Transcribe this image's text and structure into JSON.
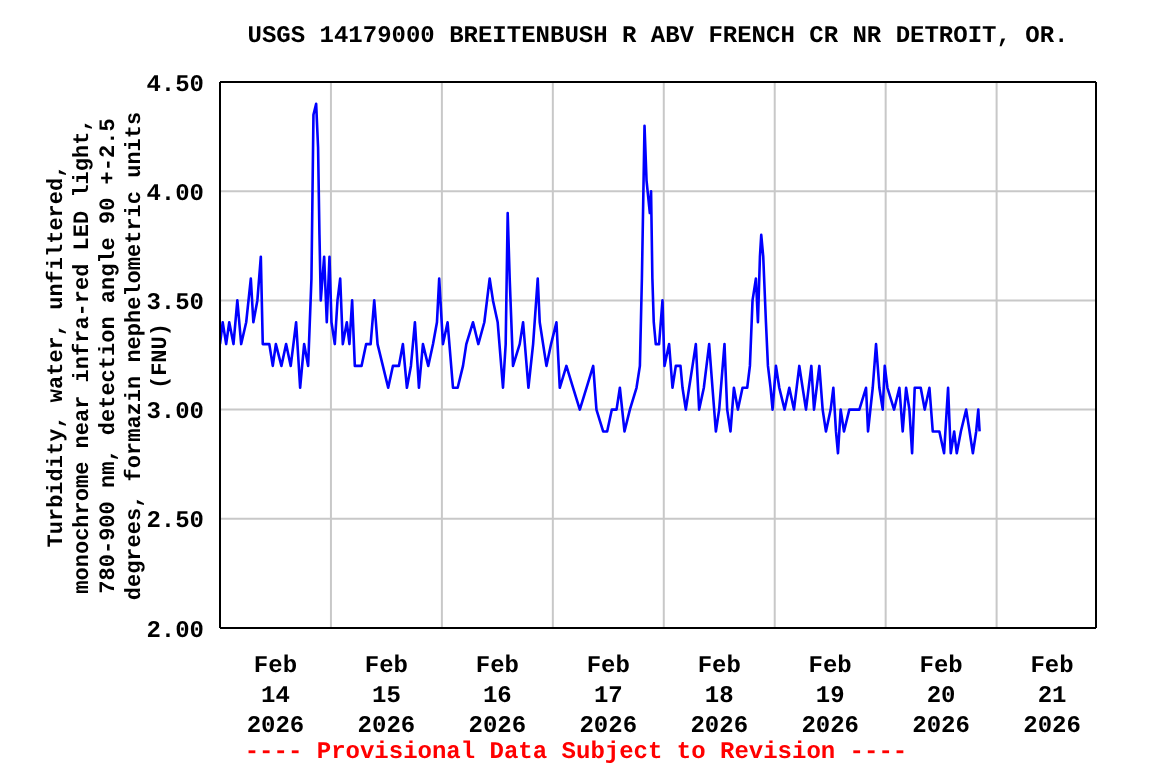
{
  "chart_data": {
    "type": "line",
    "title": "USGS 14179000 BREITENBUSH R ABV FRENCH CR NR DETROIT, OR.",
    "ylabel": "Turbidity, water, unfiltered,\nmonochrome near infra-red LED light,\n780-900 nm, detection angle 90 +-2.5\ndegrees, formazin nephelometric units\n(FNU)",
    "annotations": [
      "---- Provisional Data Subject to Revision ----"
    ],
    "x": [
      "2026-02-14T00:00",
      "2026-02-14T00:35",
      "2026-02-14T01:20",
      "2026-02-14T02:00",
      "2026-02-14T02:55",
      "2026-02-14T03:45",
      "2026-02-14T04:35",
      "2026-02-14T05:40",
      "2026-02-14T06:40",
      "2026-02-14T07:13",
      "2026-02-14T08:05",
      "2026-02-14T08:50",
      "2026-02-14T09:15",
      "2026-02-14T10:40",
      "2026-02-14T11:25",
      "2026-02-14T12:05",
      "2026-02-14T13:17",
      "2026-02-14T14:18",
      "2026-02-14T15:18",
      "2026-02-14T16:28",
      "2026-02-14T17:20",
      "2026-02-14T18:12",
      "2026-02-14T19:04",
      "2026-02-14T19:47",
      "2026-02-14T20:13",
      "2026-02-14T20:48",
      "2026-02-14T21:13",
      "2026-02-14T21:31",
      "2026-02-14T21:48",
      "2026-02-14T22:32",
      "2026-02-14T23:06",
      "2026-02-14T23:41",
      "2026-02-15T00:07",
      "2026-02-15T00:50",
      "2026-02-15T01:25",
      "2026-02-15T02:00",
      "2026-02-15T02:34",
      "2026-02-15T03:26",
      "2026-02-15T04:00",
      "2026-02-15T04:35",
      "2026-02-15T05:10",
      "2026-02-15T06:37",
      "2026-02-15T07:37",
      "2026-02-15T08:35",
      "2026-02-15T09:22",
      "2026-02-15T10:05",
      "2026-02-15T11:14",
      "2026-02-15T12:23",
      "2026-02-15T13:24",
      "2026-02-15T14:42",
      "2026-02-15T15:34",
      "2026-02-15T16:26",
      "2026-02-15T17:18",
      "2026-02-15T18:10",
      "2026-02-15T19:02",
      "2026-02-15T19:54",
      "2026-02-15T21:03",
      "2026-02-15T22:05",
      "2026-02-15T22:56",
      "2026-02-15T23:25",
      "2026-02-16T00:14",
      "2026-02-16T01:14",
      "2026-02-16T02:24",
      "2026-02-16T03:25",
      "2026-02-16T04:34",
      "2026-02-16T05:17",
      "2026-02-16T06:44",
      "2026-02-16T07:53",
      "2026-02-16T09:11",
      "2026-02-16T10:20",
      "2026-02-16T11:03",
      "2026-02-16T12:04",
      "2026-02-16T13:13",
      "2026-02-16T13:48",
      "2026-02-16T14:14",
      "2026-02-16T14:40",
      "2026-02-16T15:23",
      "2026-02-16T16:50",
      "2026-02-16T17:34",
      "2026-02-16T18:43",
      "2026-02-16T19:44",
      "2026-02-16T20:44",
      "2026-02-16T21:10",
      "2026-02-16T22:37",
      "2026-02-16T23:37",
      "2026-02-17T00:47",
      "2026-02-17T01:30",
      "2026-02-17T02:56",
      "2026-02-17T04:23",
      "2026-02-17T05:50",
      "2026-02-17T07:17",
      "2026-02-17T08:44",
      "2026-02-17T09:26",
      "2026-02-17T10:53",
      "2026-02-17T11:45",
      "2026-02-17T12:46",
      "2026-02-17T13:47",
      "2026-02-17T14:30",
      "2026-02-17T15:30",
      "2026-02-17T16:40",
      "2026-02-17T18:06",
      "2026-02-17T18:50",
      "2026-02-17T19:16",
      "2026-02-17T19:50",
      "2026-02-17T20:16",
      "2026-02-17T20:59",
      "2026-02-17T21:15",
      "2026-02-17T21:32",
      "2026-02-17T21:50",
      "2026-02-17T22:16",
      "2026-02-17T22:59",
      "2026-02-17T23:43",
      "2026-02-18T00:09",
      "2026-02-18T01:09",
      "2026-02-18T01:53",
      "2026-02-18T02:36",
      "2026-02-18T03:37",
      "2026-02-18T04:03",
      "2026-02-18T04:46",
      "2026-02-18T05:29",
      "2026-02-18T06:13",
      "2026-02-18T06:56",
      "2026-02-18T07:39",
      "2026-02-18T08:40",
      "2026-02-18T09:49",
      "2026-02-18T10:32",
      "2026-02-18T11:16",
      "2026-02-18T11:59",
      "2026-02-18T13:08",
      "2026-02-18T13:43",
      "2026-02-18T14:26",
      "2026-02-18T15:10",
      "2026-02-18T16:02",
      "2026-02-18T17:02",
      "2026-02-18T18:03",
      "2026-02-18T18:38",
      "2026-02-18T19:12",
      "2026-02-18T19:56",
      "2026-02-18T20:22",
      "2026-02-18T20:48",
      "2026-02-18T21:05",
      "2026-02-18T21:31",
      "2026-02-18T22:06",
      "2026-02-18T22:32",
      "2026-02-18T23:06",
      "2026-02-18T23:32",
      "2026-02-19T00:16",
      "2026-02-19T00:59",
      "2026-02-19T02:08",
      "2026-02-19T03:09",
      "2026-02-19T04:10",
      "2026-02-19T05:19",
      "2026-02-19T06:02",
      "2026-02-19T06:46",
      "2026-02-19T07:55",
      "2026-02-19T08:30",
      "2026-02-19T09:39",
      "2026-02-19T10:22",
      "2026-02-19T11:05",
      "2026-02-19T12:06",
      "2026-02-19T12:41",
      "2026-02-19T13:15",
      "2026-02-19T13:41",
      "2026-02-19T14:16",
      "2026-02-19T14:59",
      "2026-02-19T16:08",
      "2026-02-19T18:18",
      "2026-02-19T19:45",
      "2026-02-19T20:11",
      "2026-02-19T21:12",
      "2026-02-19T21:55",
      "2026-02-19T22:38",
      "2026-02-19T23:22",
      "2026-02-19T23:48",
      "2026-02-20T00:23",
      "2026-02-20T01:49",
      "2026-02-20T02:58",
      "2026-02-20T03:41",
      "2026-02-20T04:25",
      "2026-02-20T05:08",
      "2026-02-20T05:43",
      "2026-02-20T06:17",
      "2026-02-20T07:35",
      "2026-02-20T08:27",
      "2026-02-20T09:28",
      "2026-02-20T10:11",
      "2026-02-20T11:37",
      "2026-02-20T12:38",
      "2026-02-20T13:30",
      "2026-02-20T14:05",
      "2026-02-20T14:49",
      "2026-02-20T15:23",
      "2026-02-20T16:16",
      "2026-02-20T17:25",
      "2026-02-20T18:09",
      "2026-02-20T18:52",
      "2026-02-20T19:35",
      "2026-02-20T20:02",
      "2026-02-20T20:19"
    ],
    "series": [
      {
        "color": "#0000ff",
        "values": [
          3.3,
          3.4,
          3.3,
          3.4,
          3.3,
          3.5,
          3.3,
          3.4,
          3.6,
          3.4,
          3.5,
          3.7,
          3.3,
          3.3,
          3.2,
          3.3,
          3.2,
          3.3,
          3.2,
          3.4,
          3.1,
          3.3,
          3.2,
          3.6,
          4.35,
          4.4,
          4.2,
          3.8,
          3.5,
          3.7,
          3.4,
          3.7,
          3.4,
          3.3,
          3.5,
          3.6,
          3.3,
          3.4,
          3.3,
          3.5,
          3.2,
          3.2,
          3.3,
          3.3,
          3.5,
          3.3,
          3.2,
          3.1,
          3.2,
          3.2,
          3.3,
          3.1,
          3.2,
          3.4,
          3.1,
          3.3,
          3.2,
          3.3,
          3.4,
          3.6,
          3.3,
          3.4,
          3.1,
          3.1,
          3.2,
          3.3,
          3.4,
          3.3,
          3.4,
          3.6,
          3.5,
          3.4,
          3.1,
          3.3,
          3.9,
          3.6,
          3.2,
          3.3,
          3.4,
          3.1,
          3.3,
          3.6,
          3.4,
          3.2,
          3.3,
          3.4,
          3.1,
          3.2,
          3.1,
          3.0,
          3.1,
          3.2,
          3.0,
          2.9,
          2.9,
          3.0,
          3.0,
          3.1,
          2.9,
          3.0,
          3.1,
          3.2,
          3.6,
          4.3,
          4.05,
          3.9,
          4.0,
          3.6,
          3.4,
          3.3,
          3.3,
          3.5,
          3.2,
          3.3,
          3.1,
          3.2,
          3.2,
          3.1,
          3.0,
          3.1,
          3.2,
          3.3,
          3.0,
          3.1,
          3.3,
          3.1,
          2.9,
          3.0,
          3.3,
          3.0,
          2.9,
          3.1,
          3.0,
          3.1,
          3.1,
          3.2,
          3.5,
          3.6,
          3.4,
          3.7,
          3.8,
          3.7,
          3.4,
          3.2,
          3.1,
          3.0,
          3.2,
          3.1,
          3.0,
          3.1,
          3.0,
          3.2,
          3.1,
          3.0,
          3.2,
          3.0,
          3.2,
          3.0,
          2.9,
          3.0,
          3.1,
          2.9,
          2.8,
          3.0,
          2.9,
          3.0,
          3.0,
          3.1,
          2.9,
          3.1,
          3.3,
          3.1,
          3.0,
          3.2,
          3.1,
          3.0,
          3.1,
          2.9,
          3.1,
          3.0,
          2.8,
          3.1,
          3.1,
          3.0,
          3.1,
          2.9,
          2.9,
          2.8,
          3.1,
          2.8,
          2.9,
          2.8,
          2.9,
          3.0,
          2.9,
          2.8,
          2.9,
          3.0,
          2.9
        ]
      }
    ],
    "xlim": [
      "2026-02-14T00:00",
      "2026-02-21T21:30"
    ],
    "xticks": [
      {
        "value": "2026-02-14T12:00",
        "label": "Feb\n14\n2026"
      },
      {
        "value": "2026-02-15T12:00",
        "label": "Feb\n15\n2026"
      },
      {
        "value": "2026-02-16T12:00",
        "label": "Feb\n16\n2026"
      },
      {
        "value": "2026-02-17T12:00",
        "label": "Feb\n17\n2026"
      },
      {
        "value": "2026-02-18T12:00",
        "label": "Feb\n18\n2026"
      },
      {
        "value": "2026-02-19T12:00",
        "label": "Feb\n19\n2026"
      },
      {
        "value": "2026-02-20T12:00",
        "label": "Feb\n20\n2026"
      },
      {
        "value": "2026-02-21T12:00",
        "label": "Feb\n21\n2026"
      },
      {
        "value": "2026-02-15T00:00",
        "label": null
      },
      {
        "value": "2026-02-16T00:00",
        "label": null
      },
      {
        "value": "2026-02-17T00:00",
        "label": null
      },
      {
        "value": "2026-02-18T00:00",
        "label": null
      },
      {
        "value": "2026-02-19T00:00",
        "label": null
      },
      {
        "value": "2026-02-20T00:00",
        "label": null
      },
      {
        "value": "2026-02-21T00:00",
        "label": null
      }
    ],
    "ylim": [
      2.0,
      4.5
    ],
    "yticks": [
      {
        "value": 2.0,
        "label": "2.00"
      },
      {
        "value": 2.5,
        "label": "2.50"
      },
      {
        "value": 3.0,
        "label": "3.00"
      },
      {
        "value": 3.5,
        "label": "3.50"
      },
      {
        "value": 4.0,
        "label": "4.00"
      },
      {
        "value": 4.5,
        "label": "4.50"
      }
    ],
    "grid": true,
    "marker": "none",
    "line_style": "solid"
  }
}
